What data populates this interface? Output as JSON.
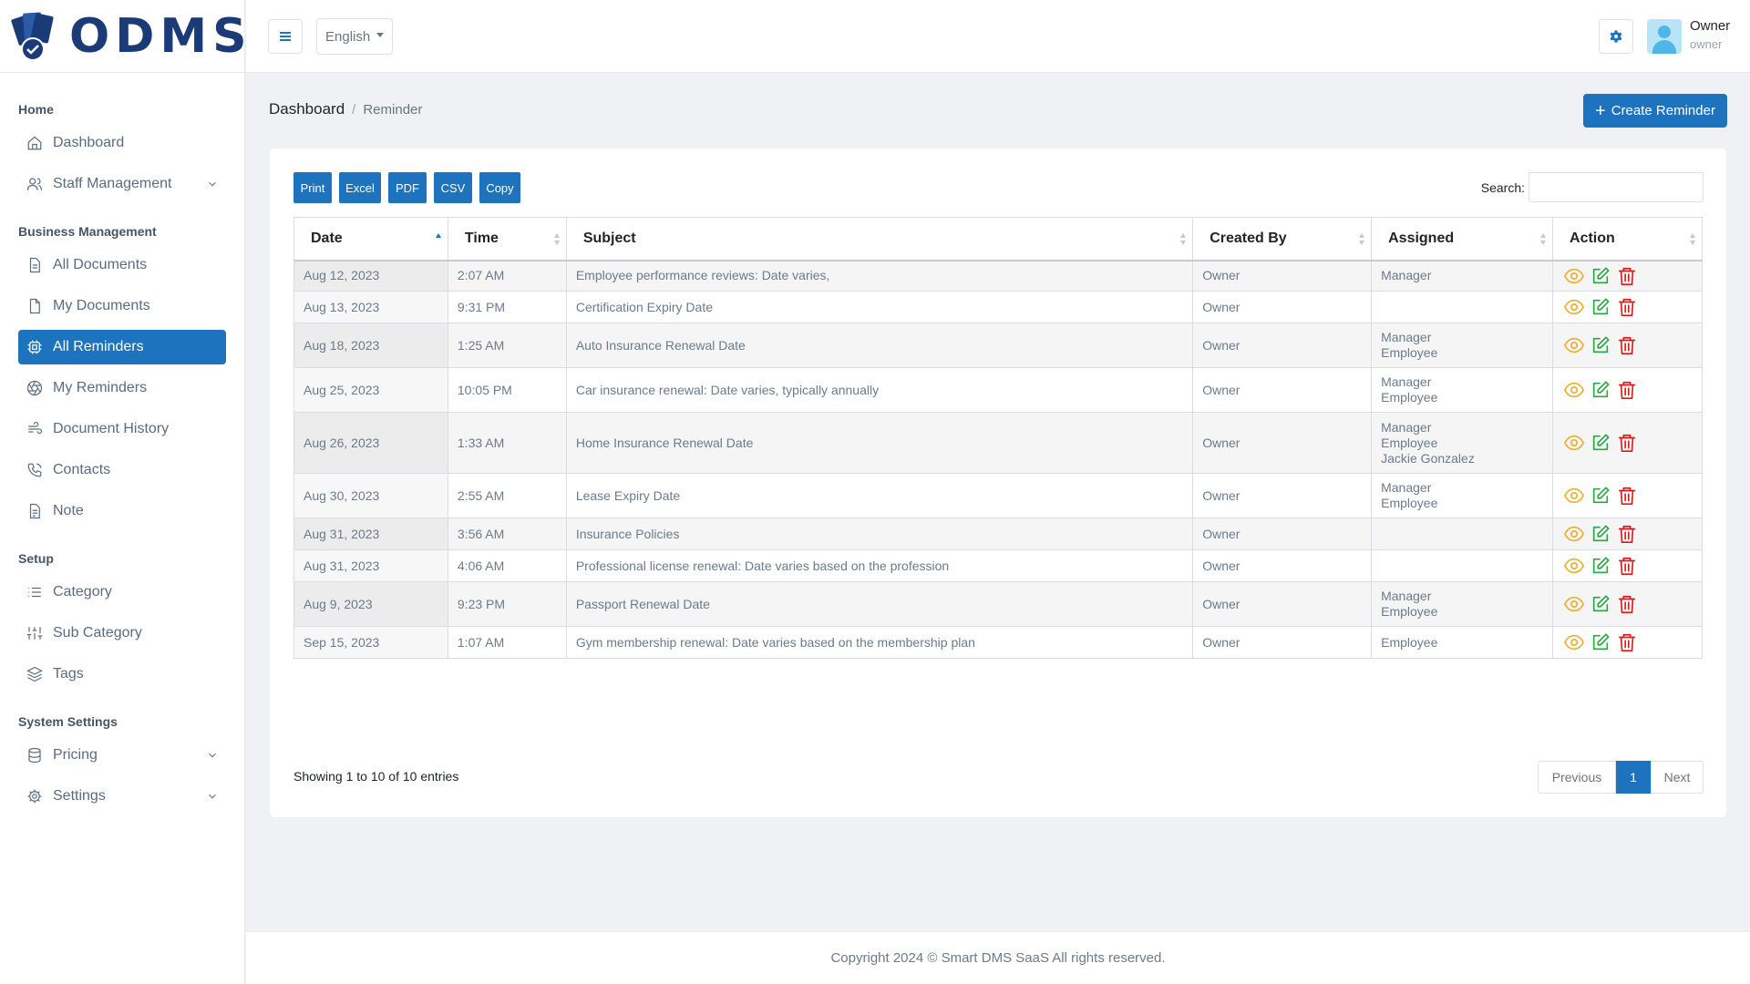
{
  "brand": {
    "name": "ODMS"
  },
  "sidebar": {
    "sections": {
      "home": "Home",
      "business": "Business Management",
      "setup": "Setup",
      "system": "System Settings"
    },
    "items": [
      {
        "label": "Dashboard",
        "icon": "home-icon"
      },
      {
        "label": "Staff Management",
        "icon": "users-icon"
      },
      {
        "label": "All Documents",
        "icon": "document-icon"
      },
      {
        "label": "My Documents",
        "icon": "file-icon"
      },
      {
        "label": "All Reminders",
        "icon": "reminder-icon",
        "active": true
      },
      {
        "label": "My Reminders",
        "icon": "aperture-icon"
      },
      {
        "label": "Document History",
        "icon": "wind-icon"
      },
      {
        "label": "Contacts",
        "icon": "phone-icon"
      },
      {
        "label": "Note",
        "icon": "note-icon"
      },
      {
        "label": "Category",
        "icon": "list-icon"
      },
      {
        "label": "Sub Category",
        "icon": "sliders-icon"
      },
      {
        "label": "Tags",
        "icon": "layers-icon"
      },
      {
        "label": "Pricing",
        "icon": "database-icon"
      },
      {
        "label": "Settings",
        "icon": "settings-icon"
      }
    ]
  },
  "header": {
    "language": "English",
    "user_name": "Owner",
    "user_role": "owner"
  },
  "breadcrumb": {
    "root": "Dashboard",
    "current": "Reminder"
  },
  "create_button": "Create Reminder",
  "toolbar": {
    "print": "Print",
    "excel": "Excel",
    "pdf": "PDF",
    "csv": "CSV",
    "copy": "Copy",
    "search_label": "Search:"
  },
  "table": {
    "columns": [
      "Date",
      "Time",
      "Subject",
      "Created By",
      "Assigned",
      "Action"
    ],
    "rows": [
      {
        "date": "Aug 12, 2023",
        "time": "2:07 AM",
        "subject": "Employee performance reviews: Date varies,",
        "created_by": "Owner",
        "assigned": [
          "Manager"
        ]
      },
      {
        "date": "Aug 13, 2023",
        "time": "9:31 PM",
        "subject": "Certification Expiry Date",
        "created_by": "Owner",
        "assigned": []
      },
      {
        "date": "Aug 18, 2023",
        "time": "1:25 AM",
        "subject": "Auto Insurance Renewal Date",
        "created_by": "Owner",
        "assigned": [
          "Manager",
          "Employee"
        ]
      },
      {
        "date": "Aug 25, 2023",
        "time": "10:05 PM",
        "subject": "Car insurance renewal: Date varies, typically annually",
        "created_by": "Owner",
        "assigned": [
          "Manager",
          "Employee"
        ]
      },
      {
        "date": "Aug 26, 2023",
        "time": "1:33 AM",
        "subject": "Home Insurance Renewal Date",
        "created_by": "Owner",
        "assigned": [
          "Manager",
          "Employee",
          "Jackie Gonzalez"
        ]
      },
      {
        "date": "Aug 30, 2023",
        "time": "2:55 AM",
        "subject": "Lease Expiry Date",
        "created_by": "Owner",
        "assigned": [
          "Manager",
          "Employee"
        ]
      },
      {
        "date": "Aug 31, 2023",
        "time": "3:56 AM",
        "subject": "Insurance Policies",
        "created_by": "Owner",
        "assigned": []
      },
      {
        "date": "Aug 31, 2023",
        "time": "4:06 AM",
        "subject": "Professional license renewal: Date varies based on the profession",
        "created_by": "Owner",
        "assigned": []
      },
      {
        "date": "Aug 9, 2023",
        "time": "9:23 PM",
        "subject": "Passport Renewal Date",
        "created_by": "Owner",
        "assigned": [
          "Manager",
          "Employee"
        ]
      },
      {
        "date": "Sep 15, 2023",
        "time": "1:07 AM",
        "subject": "Gym membership renewal: Date varies based on the membership plan",
        "created_by": "Owner",
        "assigned": [
          "Employee"
        ]
      }
    ]
  },
  "pagination": {
    "info": "Showing 1 to 10 of 10 entries",
    "previous": "Previous",
    "current": "1",
    "next": "Next"
  },
  "footer": {
    "copyright": "Copyright 2024 © Smart DMS SaaS All rights reserved."
  },
  "colors": {
    "primary": "#1e73be",
    "view": "#f0ad2e",
    "edit": "#28a745",
    "delete": "#dc1c1c"
  }
}
